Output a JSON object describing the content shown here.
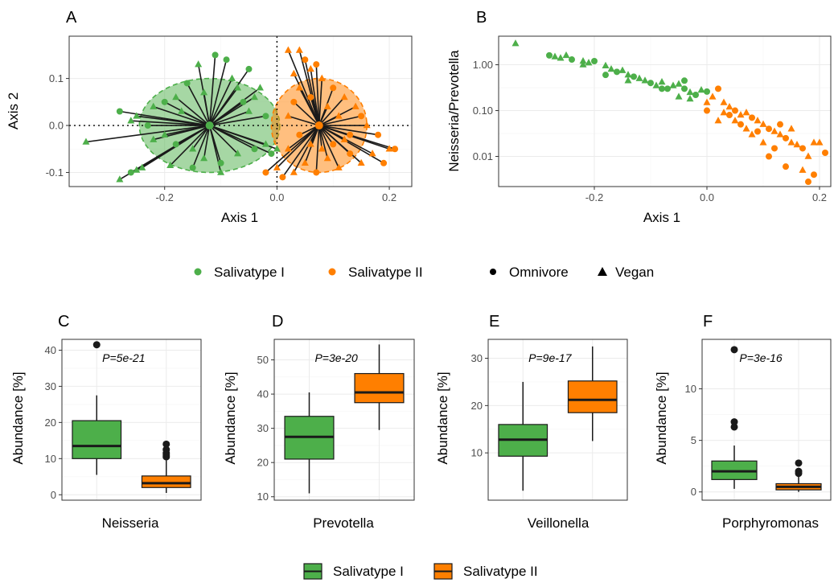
{
  "colors": {
    "salivatype_1": "#4daf4a",
    "salivatype_2": "#ff7f00",
    "segment": "#1a1a1a",
    "box_outline": "#1a1a1a"
  },
  "legend_top": {
    "color_items": [
      {
        "label": "Salivatype I",
        "color": "#4daf4a"
      },
      {
        "label": "Salivatype II",
        "color": "#ff7f00"
      }
    ],
    "shape_items": [
      {
        "label": "Omnivore",
        "shape": "circle"
      },
      {
        "label": "Vegan",
        "shape": "triangle"
      }
    ]
  },
  "legend_bottom": {
    "items": [
      {
        "label": "Salivatype I",
        "color": "#4daf4a"
      },
      {
        "label": "Salivatype II",
        "color": "#ff7f00"
      }
    ]
  },
  "chart_data": [
    {
      "panel": "A",
      "type": "scatter",
      "xlabel": "Axis 1",
      "ylabel": "Axis 2",
      "xlim": [
        -0.37,
        0.24
      ],
      "ylim": [
        -0.13,
        0.19
      ],
      "xticks": [
        -0.2,
        0.0,
        0.2
      ],
      "xtick_labels": [
        "-0.2",
        "0.0",
        "0.2"
      ],
      "yticks": [
        -0.1,
        0.0,
        0.1
      ],
      "ytick_labels": [
        "-0.1",
        "0.0",
        "0.1"
      ],
      "reference_lines": {
        "x": 0,
        "y": 0
      },
      "centroids": [
        {
          "group": "Salivatype I",
          "x": -0.12,
          "y": 0.0
        },
        {
          "group": "Salivatype II",
          "x": 0.075,
          "y": 0.0
        }
      ],
      "ellipses": [
        {
          "group": "Salivatype I",
          "cx": -0.12,
          "cy": 0.0,
          "rx": 0.125,
          "ry": 0.1
        },
        {
          "group": "Salivatype II",
          "cx": 0.075,
          "cy": 0.0,
          "rx": 0.085,
          "ry": 0.1
        }
      ],
      "series": [
        {
          "name": "Salivatype I",
          "points": [
            [
              -0.34,
              -0.035,
              "t"
            ],
            [
              -0.28,
              -0.115,
              "t"
            ],
            [
              -0.26,
              -0.1,
              "c"
            ],
            [
              -0.25,
              -0.095,
              "t"
            ],
            [
              -0.24,
              -0.09,
              "t"
            ],
            [
              -0.28,
              0.03,
              "c"
            ],
            [
              -0.25,
              0.02,
              "t"
            ],
            [
              -0.22,
              0.04,
              "t"
            ],
            [
              -0.2,
              0.05,
              "c"
            ],
            [
              -0.18,
              0.06,
              "t"
            ],
            [
              -0.17,
              0.03,
              "t"
            ],
            [
              -0.16,
              0.09,
              "c"
            ],
            [
              -0.14,
              0.13,
              "t"
            ],
            [
              -0.13,
              0.07,
              "t"
            ],
            [
              -0.11,
              0.15,
              "c"
            ],
            [
              -0.09,
              0.14,
              "c"
            ],
            [
              -0.08,
              0.1,
              "t"
            ],
            [
              -0.07,
              0.08,
              "t"
            ],
            [
              -0.06,
              0.05,
              "c"
            ],
            [
              -0.05,
              0.03,
              "t"
            ],
            [
              -0.05,
              0.12,
              "c"
            ],
            [
              -0.04,
              0.06,
              "t"
            ],
            [
              -0.03,
              0.08,
              "t"
            ],
            [
              -0.02,
              0.02,
              "c"
            ],
            [
              -0.02,
              -0.04,
              "t"
            ],
            [
              -0.04,
              -0.05,
              "c"
            ],
            [
              -0.07,
              -0.06,
              "t"
            ],
            [
              -0.1,
              -0.08,
              "c"
            ],
            [
              -0.13,
              -0.07,
              "t"
            ],
            [
              -0.15,
              -0.05,
              "t"
            ],
            [
              -0.18,
              -0.04,
              "c"
            ],
            [
              -0.2,
              -0.02,
              "t"
            ],
            [
              -0.22,
              -0.03,
              "t"
            ],
            [
              -0.23,
              0.0,
              "c"
            ],
            [
              -0.26,
              0.01,
              "t"
            ],
            [
              -0.01,
              -0.06,
              "c"
            ],
            [
              0.0,
              -0.05,
              "t"
            ],
            [
              -0.1,
              -0.1,
              "t"
            ],
            [
              -0.15,
              -0.09,
              "c"
            ],
            [
              -0.19,
              -0.085,
              "t"
            ]
          ]
        },
        {
          "name": "Salivatype II",
          "points": [
            [
              0.02,
              0.16,
              "t"
            ],
            [
              0.04,
              0.16,
              "t"
            ],
            [
              0.05,
              0.14,
              "c"
            ],
            [
              0.06,
              0.12,
              "t"
            ],
            [
              0.08,
              0.1,
              "t"
            ],
            [
              0.1,
              0.08,
              "c"
            ],
            [
              0.12,
              0.06,
              "t"
            ],
            [
              0.14,
              0.04,
              "t"
            ],
            [
              0.15,
              0.02,
              "c"
            ],
            [
              0.16,
              0.0,
              "t"
            ],
            [
              0.18,
              -0.02,
              "c"
            ],
            [
              0.2,
              -0.05,
              "t"
            ],
            [
              0.21,
              -0.05,
              "c"
            ],
            [
              0.19,
              -0.08,
              "c"
            ],
            [
              0.17,
              -0.06,
              "t"
            ],
            [
              0.15,
              -0.08,
              "t"
            ],
            [
              0.13,
              -0.06,
              "c"
            ],
            [
              0.11,
              -0.09,
              "t"
            ],
            [
              0.09,
              -0.07,
              "t"
            ],
            [
              0.07,
              -0.1,
              "c"
            ],
            [
              0.05,
              -0.08,
              "t"
            ],
            [
              0.03,
              -0.1,
              "t"
            ],
            [
              0.01,
              -0.11,
              "c"
            ],
            [
              0.0,
              -0.09,
              "t"
            ],
            [
              -0.02,
              -0.1,
              "c"
            ],
            [
              0.02,
              -0.05,
              "t"
            ],
            [
              0.03,
              0.05,
              "c"
            ],
            [
              0.04,
              0.08,
              "t"
            ],
            [
              0.06,
              0.06,
              "c"
            ],
            [
              0.09,
              0.04,
              "t"
            ],
            [
              0.11,
              0.02,
              "t"
            ],
            [
              0.13,
              -0.02,
              "c"
            ],
            [
              0.12,
              -0.03,
              "t"
            ],
            [
              0.1,
              -0.04,
              "c"
            ],
            [
              0.08,
              -0.05,
              "t"
            ],
            [
              0.06,
              -0.04,
              "t"
            ],
            [
              0.04,
              -0.02,
              "c"
            ],
            [
              0.02,
              0.02,
              "t"
            ],
            [
              0.03,
              0.11,
              "t"
            ],
            [
              0.07,
              0.13,
              "c"
            ]
          ]
        }
      ]
    },
    {
      "panel": "B",
      "type": "scatter",
      "xlabel": "Axis 1",
      "ylabel": "Neisseria/Prevotella",
      "y_scale": "log",
      "xlim": [
        -0.37,
        0.22
      ],
      "ylim": [
        0.0022,
        4.2
      ],
      "xticks": [
        -0.2,
        0.0,
        0.2
      ],
      "xtick_labels": [
        "-0.2",
        "0.0",
        "0.2"
      ],
      "yticks": [
        0.01,
        0.1,
        1.0
      ],
      "ytick_labels": [
        "0.01",
        "0.10",
        "1.00"
      ],
      "series": [
        {
          "name": "Salivatype I",
          "points": [
            [
              -0.34,
              2.9,
              "t"
            ],
            [
              -0.28,
              1.6,
              "c"
            ],
            [
              -0.27,
              1.5,
              "t"
            ],
            [
              -0.26,
              1.4,
              "t"
            ],
            [
              -0.25,
              1.6,
              "t"
            ],
            [
              -0.24,
              1.3,
              "c"
            ],
            [
              -0.22,
              1.2,
              "t"
            ],
            [
              -0.21,
              1.1,
              "t"
            ],
            [
              -0.2,
              1.2,
              "c"
            ],
            [
              -0.18,
              0.95,
              "t"
            ],
            [
              -0.17,
              0.8,
              "t"
            ],
            [
              -0.16,
              0.7,
              "c"
            ],
            [
              -0.15,
              0.75,
              "t"
            ],
            [
              -0.14,
              0.6,
              "t"
            ],
            [
              -0.13,
              0.55,
              "c"
            ],
            [
              -0.12,
              0.5,
              "t"
            ],
            [
              -0.11,
              0.45,
              "t"
            ],
            [
              -0.1,
              0.4,
              "c"
            ],
            [
              -0.09,
              0.35,
              "t"
            ],
            [
              -0.08,
              0.42,
              "t"
            ],
            [
              -0.07,
              0.3,
              "c"
            ],
            [
              -0.06,
              0.35,
              "t"
            ],
            [
              -0.05,
              0.38,
              "t"
            ],
            [
              -0.04,
              0.3,
              "c"
            ],
            [
              -0.03,
              0.25,
              "t"
            ],
            [
              -0.02,
              0.22,
              "c"
            ],
            [
              -0.01,
              0.28,
              "t"
            ],
            [
              0.0,
              0.26,
              "c"
            ],
            [
              -0.04,
              0.45,
              "c"
            ],
            [
              -0.05,
              0.2,
              "t"
            ],
            [
              -0.03,
              0.18,
              "t"
            ],
            [
              -0.08,
              0.3,
              "c"
            ],
            [
              -0.14,
              0.45,
              "t"
            ],
            [
              -0.18,
              0.6,
              "c"
            ],
            [
              -0.22,
              1.0,
              "t"
            ]
          ]
        },
        {
          "name": "Salivatype II",
          "points": [
            [
              0.0,
              0.1,
              "c"
            ],
            [
              0.01,
              0.2,
              "t"
            ],
            [
              0.02,
              0.3,
              "c"
            ],
            [
              0.03,
              0.15,
              "t"
            ],
            [
              0.04,
              0.12,
              "t"
            ],
            [
              0.05,
              0.1,
              "c"
            ],
            [
              0.06,
              0.08,
              "t"
            ],
            [
              0.07,
              0.09,
              "t"
            ],
            [
              0.08,
              0.07,
              "c"
            ],
            [
              0.09,
              0.06,
              "t"
            ],
            [
              0.1,
              0.05,
              "t"
            ],
            [
              0.11,
              0.04,
              "c"
            ],
            [
              0.12,
              0.035,
              "t"
            ],
            [
              0.13,
              0.03,
              "t"
            ],
            [
              0.14,
              0.025,
              "c"
            ],
            [
              0.15,
              0.02,
              "t"
            ],
            [
              0.16,
              0.018,
              "t"
            ],
            [
              0.17,
              0.015,
              "c"
            ],
            [
              0.18,
              0.01,
              "t"
            ],
            [
              0.19,
              0.02,
              "t"
            ],
            [
              0.2,
              0.02,
              "t"
            ],
            [
              0.21,
              0.012,
              "c"
            ],
            [
              0.18,
              0.0028,
              "c"
            ],
            [
              0.19,
              0.004,
              "c"
            ],
            [
              0.17,
              0.005,
              "t"
            ],
            [
              0.14,
              0.006,
              "c"
            ],
            [
              0.12,
              0.015,
              "c"
            ],
            [
              0.1,
              0.02,
              "t"
            ],
            [
              0.09,
              0.035,
              "c"
            ],
            [
              0.07,
              0.04,
              "t"
            ],
            [
              0.06,
              0.05,
              "c"
            ],
            [
              0.05,
              0.06,
              "t"
            ],
            [
              0.04,
              0.08,
              "c"
            ],
            [
              0.03,
              0.09,
              "t"
            ],
            [
              0.11,
              0.01,
              "c"
            ],
            [
              0.08,
              0.03,
              "t"
            ],
            [
              0.13,
              0.05,
              "c"
            ],
            [
              0.15,
              0.04,
              "t"
            ],
            [
              0.02,
              0.06,
              "t"
            ],
            [
              0.0,
              0.15,
              "t"
            ]
          ]
        }
      ]
    },
    {
      "panel": "C",
      "type": "box",
      "xlabel": "Neisseria",
      "ylabel": "Abundance [%]",
      "annotation": "P=5e-21",
      "ylim": [
        -1.5,
        43
      ],
      "yticks": [
        0,
        10,
        20,
        30,
        40
      ],
      "ytick_labels": [
        "0",
        "10",
        "20",
        "30",
        "40"
      ],
      "boxes": [
        {
          "group": "Salivatype I",
          "whisker_low": 5.5,
          "q1": 10,
          "median": 13.5,
          "q3": 20.5,
          "whisker_high": 27.5,
          "outliers": [
            41.5
          ]
        },
        {
          "group": "Salivatype II",
          "whisker_low": 0.5,
          "q1": 2,
          "median": 3.2,
          "q3": 5.2,
          "whisker_high": 9.5,
          "outliers": [
            10.5,
            11,
            11.5,
            12.5,
            14
          ]
        }
      ]
    },
    {
      "panel": "D",
      "type": "box",
      "xlabel": "Prevotella",
      "ylabel": "Abundance [%]",
      "annotation": "P=3e-20",
      "ylim": [
        9,
        56
      ],
      "yticks": [
        10,
        20,
        30,
        40,
        50
      ],
      "ytick_labels": [
        "10",
        "20",
        "30",
        "40",
        "50"
      ],
      "boxes": [
        {
          "group": "Salivatype I",
          "whisker_low": 11,
          "q1": 21,
          "median": 27.5,
          "q3": 33.5,
          "whisker_high": 40.5,
          "outliers": []
        },
        {
          "group": "Salivatype II",
          "whisker_low": 29.5,
          "q1": 37.5,
          "median": 40.5,
          "q3": 46,
          "whisker_high": 54.5,
          "outliers": []
        }
      ]
    },
    {
      "panel": "E",
      "type": "box",
      "xlabel": "Veillonella",
      "ylabel": "Abundance [%]",
      "annotation": "P=9e-17",
      "ylim": [
        0,
        34
      ],
      "yticks": [
        10,
        20,
        30
      ],
      "ytick_labels": [
        "10",
        "20",
        "30"
      ],
      "boxes": [
        {
          "group": "Salivatype I",
          "whisker_low": 2,
          "q1": 9.3,
          "median": 12.8,
          "q3": 16,
          "whisker_high": 25,
          "outliers": []
        },
        {
          "group": "Salivatype II",
          "whisker_low": 12.5,
          "q1": 18.5,
          "median": 21.2,
          "q3": 25.2,
          "whisker_high": 32.5,
          "outliers": []
        }
      ]
    },
    {
      "panel": "F",
      "type": "box",
      "xlabel": "Porphyromonas",
      "ylabel": "Abundance [%]",
      "annotation": "P=3e-16",
      "ylim": [
        -0.8,
        14.8
      ],
      "yticks": [
        0,
        5,
        10
      ],
      "ytick_labels": [
        "0",
        "5",
        "10"
      ],
      "boxes": [
        {
          "group": "Salivatype I",
          "whisker_low": 0.3,
          "q1": 1.2,
          "median": 2.0,
          "q3": 3.0,
          "whisker_high": 4.5,
          "outliers": [
            6.3,
            6.8,
            13.8
          ]
        },
        {
          "group": "Salivatype II",
          "whisker_low": 0.0,
          "q1": 0.2,
          "median": 0.5,
          "q3": 0.8,
          "whisker_high": 1.5,
          "outliers": [
            1.8,
            2.0,
            2.8
          ]
        }
      ]
    }
  ]
}
